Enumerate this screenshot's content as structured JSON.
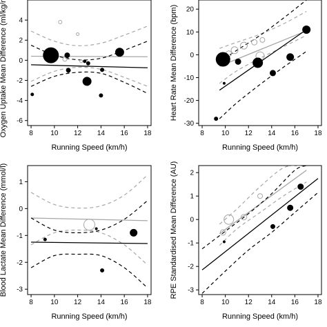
{
  "chart_data": [
    {
      "type": "scatter",
      "xlabel": "Running Speed (km/h)",
      "ylabel": "Oxygen Uptake Mean Difference (ml/kg/min)",
      "xlim": [
        7.7,
        18.3
      ],
      "ylim": [
        -6.5,
        6
      ],
      "xticks": [
        8,
        10,
        12,
        14,
        16,
        18
      ],
      "yticks": [
        -6,
        -4,
        -2,
        0,
        2,
        4
      ],
      "series": [
        {
          "style": "grey",
          "fit": [
            [
              8,
              0.4
            ],
            [
              18,
              0.35
            ]
          ],
          "ci_upper": [
            [
              8,
              2.9
            ],
            [
              10,
              1.9
            ],
            [
              12,
              1.45
            ],
            [
              14,
              1.7
            ],
            [
              16,
              2.5
            ],
            [
              18,
              3.4
            ]
          ],
          "ci_lower": [
            [
              8,
              -2.1
            ],
            [
              10,
              -1.1
            ],
            [
              12,
              -0.7
            ],
            [
              14,
              -0.9
            ],
            [
              16,
              -1.7
            ],
            [
              18,
              -2.6
            ]
          ],
          "points": [
            {
              "x": 10.5,
              "y": 3.8,
              "r": 2.5
            },
            {
              "x": 12.0,
              "y": 2.6,
              "r": 2
            },
            {
              "x": 10.9,
              "y": 0.1,
              "r": 3
            },
            {
              "x": 12.3,
              "y": -0.1,
              "r": 2
            }
          ]
        },
        {
          "style": "black",
          "fit": [
            [
              8,
              -0.45
            ],
            [
              18,
              -0.75
            ]
          ],
          "ci_upper": [
            [
              8,
              1.5
            ],
            [
              10,
              0.5
            ],
            [
              12,
              0.05
            ],
            [
              14,
              0.2
            ],
            [
              16,
              1.0
            ],
            [
              18,
              1.9
            ]
          ],
          "ci_lower": [
            [
              8,
              -2.6
            ],
            [
              10,
              -1.6
            ],
            [
              12,
              -1.2
            ],
            [
              14,
              -1.3
            ],
            [
              16,
              -2.2
            ],
            [
              18,
              -3.3
            ]
          ],
          "points": [
            {
              "x": 9.7,
              "y": 0.5,
              "r": 11
            },
            {
              "x": 11.1,
              "y": 0.5,
              "r": 3.5
            },
            {
              "x": 15.6,
              "y": 0.8,
              "r": 6
            },
            {
              "x": 12.6,
              "y": -0.1,
              "r": 2
            },
            {
              "x": 12.9,
              "y": -0.3,
              "r": 2.5
            },
            {
              "x": 11.2,
              "y": -1.0,
              "r": 3
            },
            {
              "x": 14.1,
              "y": -0.95,
              "r": 2.5
            },
            {
              "x": 12.8,
              "y": -2.1,
              "r": 6
            },
            {
              "x": 8.1,
              "y": -3.4,
              "r": 2
            },
            {
              "x": 14.0,
              "y": -3.5,
              "r": 2.5
            }
          ]
        }
      ]
    },
    {
      "type": "scatter",
      "xlabel": "Running Speed (km/h)",
      "ylabel": "Heart Rate Mean Difference (bpm)",
      "xlim": [
        7.7,
        18.3
      ],
      "ylim": [
        -31,
        24
      ],
      "xticks": [
        8,
        10,
        12,
        14,
        16,
        18
      ],
      "yticks": [
        -30,
        -20,
        -10,
        0,
        10,
        20
      ],
      "series": [
        {
          "style": "grey",
          "fit": [
            [
              9.5,
              -5
            ],
            [
              17,
              10.5
            ]
          ],
          "ci_upper": [
            [
              9.5,
              2.8
            ],
            [
              11,
              5.5
            ],
            [
              13,
              9.0
            ],
            [
              15,
              13.5
            ],
            [
              17,
              19
            ]
          ],
          "ci_lower": [
            [
              9.5,
              -12.5
            ],
            [
              11,
              -7
            ],
            [
              13,
              -1.5
            ],
            [
              15,
              3.5
            ],
            [
              17,
              8.5
            ]
          ],
          "points": [
            {
              "x": 10.3,
              "y": 0.5,
              "r": 4
            },
            {
              "x": 10.8,
              "y": 2,
              "r": 5
            },
            {
              "x": 11.6,
              "y": 4,
              "r": 5
            },
            {
              "x": 12.5,
              "y": 5.5,
              "r": 4
            },
            {
              "x": 13.2,
              "y": 6.5,
              "r": 3.5
            },
            {
              "x": 13.0,
              "y": -0.5,
              "r": 6
            }
          ]
        },
        {
          "style": "black",
          "fit": [
            [
              9.5,
              -15.5
            ],
            [
              17,
              11
            ]
          ],
          "ci_upper": [
            [
              9.5,
              -3
            ],
            [
              11,
              2
            ],
            [
              13,
              8.5
            ],
            [
              15,
              16
            ],
            [
              17,
              24
            ]
          ],
          "ci_lower": [
            [
              9.5,
              -28
            ],
            [
              11,
              -21
            ],
            [
              13,
              -13
            ],
            [
              15,
              -5.5
            ],
            [
              17,
              1.5
            ]
          ],
          "points": [
            {
              "x": 9.8,
              "y": -2,
              "r": 10
            },
            {
              "x": 11.1,
              "y": -3,
              "r": 4
            },
            {
              "x": 12.8,
              "y": -3.5,
              "r": 7
            },
            {
              "x": 14.1,
              "y": -8,
              "r": 4
            },
            {
              "x": 15.6,
              "y": -1,
              "r": 5
            },
            {
              "x": 17.0,
              "y": 11,
              "r": 5.5
            },
            {
              "x": 9.2,
              "y": -28,
              "r": 2.5
            },
            {
              "x": 9.9,
              "y": -12.5,
              "r": 1.5
            }
          ]
        }
      ]
    },
    {
      "type": "scatter",
      "xlabel": "Running Speed (km/h)",
      "ylabel": "Blood Lactate Mean Difference (mmol/l)",
      "xlim": [
        7.7,
        18.3
      ],
      "ylim": [
        -3.2,
        1.6
      ],
      "xticks": [
        8,
        10,
        12,
        14,
        16,
        18
      ],
      "yticks": [
        -3,
        -2,
        -1,
        0,
        1
      ],
      "series": [
        {
          "style": "grey",
          "fit": [
            [
              8,
              -0.35
            ],
            [
              18,
              -0.45
            ]
          ],
          "ci_upper": [
            [
              8,
              0.6
            ],
            [
              10,
              0.15
            ],
            [
              12,
              0.02
            ],
            [
              14,
              0.1
            ],
            [
              16,
              0.5
            ],
            [
              18,
              1.25
            ]
          ],
          "ci_lower": [
            [
              8,
              -1.35
            ],
            [
              10,
              -0.9
            ],
            [
              12,
              -0.8
            ],
            [
              14,
              -0.9
            ],
            [
              16,
              -1.35
            ],
            [
              18,
              -2.1
            ]
          ],
          "points": [
            {
              "x": 13.0,
              "y": -0.6,
              "r": 8
            }
          ]
        },
        {
          "style": "black",
          "fit": [
            [
              8,
              -1.25
            ],
            [
              18,
              -1.3
            ]
          ],
          "ci_upper": [
            [
              8,
              -0.35
            ],
            [
              10,
              -0.8
            ],
            [
              12,
              -0.9
            ],
            [
              14,
              -0.8
            ],
            [
              16,
              -0.4
            ],
            [
              18,
              0.3
            ]
          ],
          "ci_lower": [
            [
              8,
              -2.2
            ],
            [
              10,
              -1.75
            ],
            [
              12,
              -1.7
            ],
            [
              14,
              -1.75
            ],
            [
              16,
              -2.2
            ],
            [
              18,
              -2.95
            ]
          ],
          "points": [
            {
              "x": 9.2,
              "y": -1.15,
              "r": 2
            },
            {
              "x": 13.6,
              "y": -0.75,
              "r": 1.5
            },
            {
              "x": 14.1,
              "y": -2.3,
              "r": 2.5
            },
            {
              "x": 16.8,
              "y": -0.9,
              "r": 5
            }
          ]
        }
      ]
    },
    {
      "type": "scatter",
      "xlabel": "Running Speed (km/h)",
      "ylabel": "RPE Standardised Mean Difference (AU)",
      "xlim": [
        7.7,
        18.3
      ],
      "ylim": [
        -3.2,
        2.3
      ],
      "xticks": [
        8,
        10,
        12,
        14,
        16,
        18
      ],
      "yticks": [
        -3,
        -2,
        -1,
        0,
        1,
        2
      ],
      "series": [
        {
          "style": "grey",
          "fit": [
            [
              9.5,
              -0.6
            ],
            [
              17,
              2.1
            ]
          ],
          "ci_upper": [
            [
              9.5,
              -0.2
            ],
            [
              11,
              0.45
            ],
            [
              13,
              1.4
            ],
            [
              15,
              2.2
            ],
            [
              16.5,
              2.3
            ]
          ],
          "ci_lower": [
            [
              9.5,
              -1.1
            ],
            [
              11,
              -0.4
            ],
            [
              13,
              0.3
            ],
            [
              15,
              1.0
            ],
            [
              17,
              1.6
            ]
          ],
          "points": [
            {
              "x": 9.8,
              "y": -0.55,
              "r": 4
            },
            {
              "x": 10.3,
              "y": 0.0,
              "r": 7
            },
            {
              "x": 11.6,
              "y": 0.1,
              "r": 4
            },
            {
              "x": 13.0,
              "y": 1.0,
              "r": 3.5
            }
          ]
        },
        {
          "style": "black",
          "fit": [
            [
              8,
              -2.15
            ],
            [
              18,
              1.75
            ]
          ],
          "ci_upper": [
            [
              8,
              -1.25
            ],
            [
              10,
              -0.5
            ],
            [
              12,
              0.25
            ],
            [
              14,
              1.1
            ],
            [
              16,
              2.1
            ],
            [
              17,
              2.3
            ]
          ],
          "ci_lower": [
            [
              8,
              -3.15
            ],
            [
              10,
              -2.2
            ],
            [
              12,
              -1.3
            ],
            [
              14,
              -0.55
            ],
            [
              16,
              0.3
            ],
            [
              18,
              1.15
            ]
          ],
          "points": [
            {
              "x": 9.9,
              "y": -0.95,
              "r": 1.5
            },
            {
              "x": 14.1,
              "y": -0.3,
              "r": 3
            },
            {
              "x": 15.6,
              "y": 0.5,
              "r": 4
            },
            {
              "x": 16.5,
              "y": 1.4,
              "r": 4
            }
          ]
        }
      ]
    }
  ]
}
